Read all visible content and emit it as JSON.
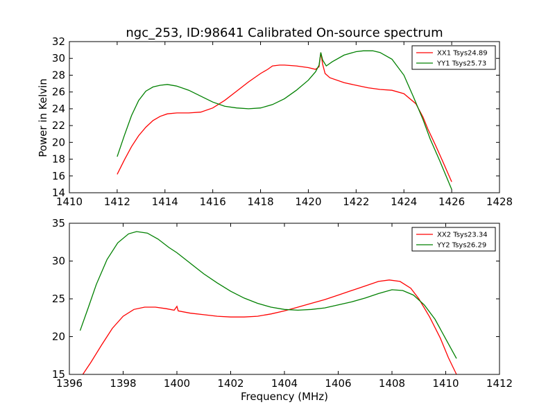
{
  "figure": {
    "title": "ngc_253, ID:98641 Calibrated On-source spectrum",
    "ylabel": "Power in Kelvin",
    "xlabel": "Frequency (MHz)"
  },
  "chart_data": [
    {
      "type": "line",
      "title": "ngc_253, ID:98641 Calibrated On-source spectrum",
      "xlabel": "",
      "ylabel": "Power in Kelvin",
      "xlim": [
        1410,
        1428
      ],
      "ylim": [
        14,
        32
      ],
      "xticks": [
        1410,
        1412,
        1414,
        1416,
        1418,
        1420,
        1422,
        1424,
        1426,
        1428
      ],
      "yticks": [
        14,
        16,
        18,
        20,
        22,
        24,
        26,
        28,
        30,
        32
      ],
      "grid": false,
      "legend_position": "top-right",
      "series": [
        {
          "name": "XX1 Tsys24.89",
          "color": "#ff0000",
          "points": [
            [
              1412.0,
              16.2
            ],
            [
              1412.3,
              17.9
            ],
            [
              1412.6,
              19.5
            ],
            [
              1412.9,
              20.8
            ],
            [
              1413.2,
              21.8
            ],
            [
              1413.5,
              22.6
            ],
            [
              1413.8,
              23.1
            ],
            [
              1414.1,
              23.4
            ],
            [
              1414.5,
              23.5
            ],
            [
              1415.0,
              23.5
            ],
            [
              1415.5,
              23.6
            ],
            [
              1416.0,
              24.1
            ],
            [
              1416.5,
              25.0
            ],
            [
              1417.0,
              26.1
            ],
            [
              1417.5,
              27.2
            ],
            [
              1418.0,
              28.2
            ],
            [
              1418.3,
              28.7
            ],
            [
              1418.5,
              29.1
            ],
            [
              1418.8,
              29.2
            ],
            [
              1419.0,
              29.2
            ],
            [
              1419.5,
              29.1
            ],
            [
              1420.0,
              28.9
            ],
            [
              1420.3,
              28.7
            ],
            [
              1420.45,
              29.0
            ],
            [
              1420.52,
              30.7
            ],
            [
              1420.6,
              29.3
            ],
            [
              1420.7,
              28.2
            ],
            [
              1420.9,
              27.7
            ],
            [
              1421.5,
              27.1
            ],
            [
              1422.0,
              26.8
            ],
            [
              1422.5,
              26.5
            ],
            [
              1423.0,
              26.3
            ],
            [
              1423.5,
              26.2
            ],
            [
              1424.0,
              25.8
            ],
            [
              1424.5,
              24.6
            ],
            [
              1424.8,
              23.0
            ],
            [
              1425.0,
              21.6
            ],
            [
              1425.3,
              19.8
            ],
            [
              1425.6,
              17.9
            ],
            [
              1426.0,
              15.3
            ]
          ]
        },
        {
          "name": "YY1 Tsys25.73",
          "color": "#008000",
          "points": [
            [
              1412.0,
              18.3
            ],
            [
              1412.3,
              20.8
            ],
            [
              1412.6,
              23.2
            ],
            [
              1412.9,
              25.0
            ],
            [
              1413.2,
              26.1
            ],
            [
              1413.5,
              26.6
            ],
            [
              1413.8,
              26.8
            ],
            [
              1414.1,
              26.9
            ],
            [
              1414.5,
              26.7
            ],
            [
              1415.0,
              26.2
            ],
            [
              1415.5,
              25.5
            ],
            [
              1416.0,
              24.8
            ],
            [
              1416.5,
              24.3
            ],
            [
              1417.0,
              24.1
            ],
            [
              1417.5,
              24.0
            ],
            [
              1418.0,
              24.1
            ],
            [
              1418.5,
              24.5
            ],
            [
              1419.0,
              25.2
            ],
            [
              1419.5,
              26.2
            ],
            [
              1420.0,
              27.4
            ],
            [
              1420.3,
              28.4
            ],
            [
              1420.45,
              29.2
            ],
            [
              1420.52,
              30.7
            ],
            [
              1420.6,
              29.8
            ],
            [
              1420.75,
              29.1
            ],
            [
              1421.0,
              29.6
            ],
            [
              1421.5,
              30.4
            ],
            [
              1422.0,
              30.8
            ],
            [
              1422.3,
              30.9
            ],
            [
              1422.7,
              30.9
            ],
            [
              1423.0,
              30.7
            ],
            [
              1423.5,
              29.9
            ],
            [
              1424.0,
              28.0
            ],
            [
              1424.4,
              25.4
            ],
            [
              1424.8,
              22.7
            ],
            [
              1425.1,
              20.4
            ],
            [
              1425.5,
              17.8
            ],
            [
              1426.0,
              14.4
            ]
          ]
        }
      ]
    },
    {
      "type": "line",
      "title": "",
      "xlabel": "Frequency (MHz)",
      "ylabel": "",
      "xlim": [
        1396,
        1412
      ],
      "ylim": [
        15,
        35
      ],
      "xticks": [
        1396,
        1398,
        1400,
        1402,
        1404,
        1406,
        1408,
        1410,
        1412
      ],
      "yticks": [
        15,
        20,
        25,
        30,
        35
      ],
      "grid": false,
      "legend_position": "top-right",
      "series": [
        {
          "name": "XX2 Tsys23.34",
          "color": "#ff0000",
          "points": [
            [
              1396.5,
              15.0
            ],
            [
              1396.8,
              16.6
            ],
            [
              1397.2,
              18.9
            ],
            [
              1397.6,
              21.1
            ],
            [
              1398.0,
              22.7
            ],
            [
              1398.4,
              23.6
            ],
            [
              1398.8,
              23.9
            ],
            [
              1399.2,
              23.9
            ],
            [
              1399.6,
              23.7
            ],
            [
              1399.9,
              23.5
            ],
            [
              1400.0,
              24.0
            ],
            [
              1400.05,
              23.4
            ],
            [
              1400.5,
              23.1
            ],
            [
              1401.0,
              22.9
            ],
            [
              1401.5,
              22.7
            ],
            [
              1402.0,
              22.6
            ],
            [
              1402.5,
              22.6
            ],
            [
              1403.0,
              22.7
            ],
            [
              1403.5,
              23.0
            ],
            [
              1404.0,
              23.4
            ],
            [
              1404.5,
              23.9
            ],
            [
              1405.0,
              24.4
            ],
            [
              1405.5,
              24.9
            ],
            [
              1406.0,
              25.5
            ],
            [
              1406.5,
              26.1
            ],
            [
              1407.0,
              26.7
            ],
            [
              1407.5,
              27.3
            ],
            [
              1407.9,
              27.5
            ],
            [
              1408.3,
              27.3
            ],
            [
              1408.7,
              26.4
            ],
            [
              1409.0,
              25.0
            ],
            [
              1409.4,
              22.6
            ],
            [
              1409.8,
              19.8
            ],
            [
              1410.1,
              17.2
            ],
            [
              1410.4,
              15.0
            ]
          ]
        },
        {
          "name": "YY2 Tsys26.29",
          "color": "#008000",
          "points": [
            [
              1396.4,
              20.8
            ],
            [
              1396.7,
              23.8
            ],
            [
              1397.0,
              26.9
            ],
            [
              1397.4,
              30.2
            ],
            [
              1397.8,
              32.4
            ],
            [
              1398.2,
              33.6
            ],
            [
              1398.5,
              33.9
            ],
            [
              1398.9,
              33.7
            ],
            [
              1399.3,
              32.9
            ],
            [
              1399.7,
              31.8
            ],
            [
              1400.0,
              31.1
            ],
            [
              1400.5,
              29.7
            ],
            [
              1401.0,
              28.3
            ],
            [
              1401.5,
              27.1
            ],
            [
              1402.0,
              26.0
            ],
            [
              1402.5,
              25.1
            ],
            [
              1403.0,
              24.4
            ],
            [
              1403.5,
              23.9
            ],
            [
              1404.0,
              23.6
            ],
            [
              1404.5,
              23.5
            ],
            [
              1405.0,
              23.6
            ],
            [
              1405.5,
              23.8
            ],
            [
              1406.0,
              24.2
            ],
            [
              1406.5,
              24.6
            ],
            [
              1407.0,
              25.1
            ],
            [
              1407.5,
              25.7
            ],
            [
              1408.0,
              26.2
            ],
            [
              1408.4,
              26.1
            ],
            [
              1408.8,
              25.5
            ],
            [
              1409.2,
              24.2
            ],
            [
              1409.6,
              22.3
            ],
            [
              1410.0,
              19.7
            ],
            [
              1410.4,
              17.1
            ]
          ]
        }
      ]
    }
  ]
}
